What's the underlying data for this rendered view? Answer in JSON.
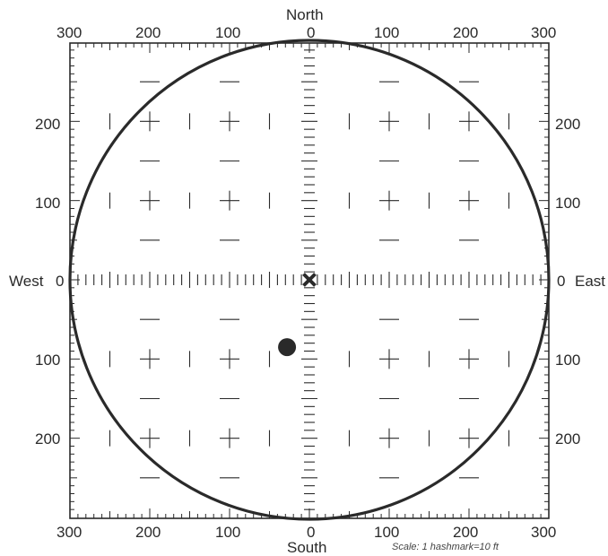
{
  "directions": {
    "north": "North",
    "south": "South",
    "west": "West",
    "east": "East"
  },
  "scale_note": "Scale:  1 hashmark=10 ft",
  "x_tick_labels_top": [
    "300",
    "200",
    "100",
    "0",
    "100",
    "200",
    "300"
  ],
  "x_tick_labels_bottom": [
    "300",
    "200",
    "100",
    "0",
    "100",
    "200",
    "300"
  ],
  "y_tick_labels_left": [
    "200",
    "100",
    "0",
    "100",
    "200"
  ],
  "y_tick_labels_right": [
    "200",
    "100",
    "0",
    "100",
    "200"
  ],
  "grid": {
    "range_ft": 300,
    "hashmark_ft": 10,
    "major_ft": 100
  },
  "circle": {
    "radius_ft": 300
  },
  "markers": [
    {
      "type": "x",
      "east_ft": 0,
      "north_ft": 0
    },
    {
      "type": "dot",
      "east_ft": -28,
      "north_ft": -85
    }
  ],
  "colors": {
    "ink": "#2a2a2a"
  }
}
